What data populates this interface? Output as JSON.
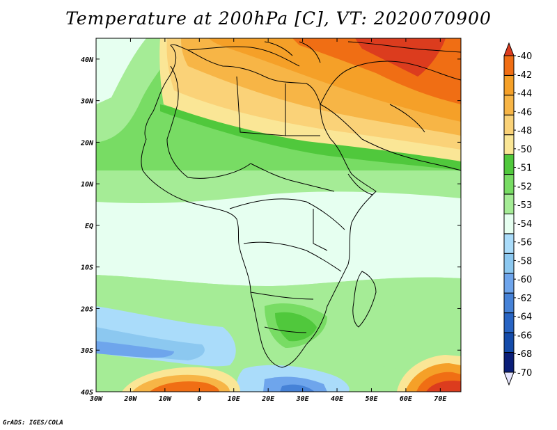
{
  "title": "Temperature at 200hPa [C], VT: 2020070900",
  "credit": "GrADS: IGES/COLA",
  "x_ticks": [
    "30W",
    "20W",
    "10W",
    "0",
    "10E",
    "20E",
    "30E",
    "40E",
    "50E",
    "60E",
    "70E"
  ],
  "y_ticks": [
    "40N",
    "30N",
    "20N",
    "10N",
    "EQ",
    "10S",
    "20S",
    "30S",
    "40S"
  ],
  "colorbar": {
    "labels": [
      "-40",
      "-42",
      "-44",
      "-46",
      "-48",
      "-50",
      "-51",
      "-52",
      "-53",
      "-54",
      "-56",
      "-58",
      "-60",
      "-62",
      "-64",
      "-66",
      "-68",
      "-70"
    ],
    "colors": [
      "#dc3c1e",
      "#f06e14",
      "#f5a028",
      "#f7b546",
      "#fad278",
      "#fae696",
      "#50c83c",
      "#78dc64",
      "#a5ec96",
      "#e6fff0",
      "#aadcfa",
      "#8cc8f0",
      "#6ea5ec",
      "#4682d7",
      "#2864c3",
      "#144baa",
      "#0a1e78",
      "#e6e6ff"
    ]
  },
  "map": {
    "region": "Africa",
    "lon_range": [
      -30,
      76
    ],
    "lat_range": [
      -40,
      45
    ]
  }
}
